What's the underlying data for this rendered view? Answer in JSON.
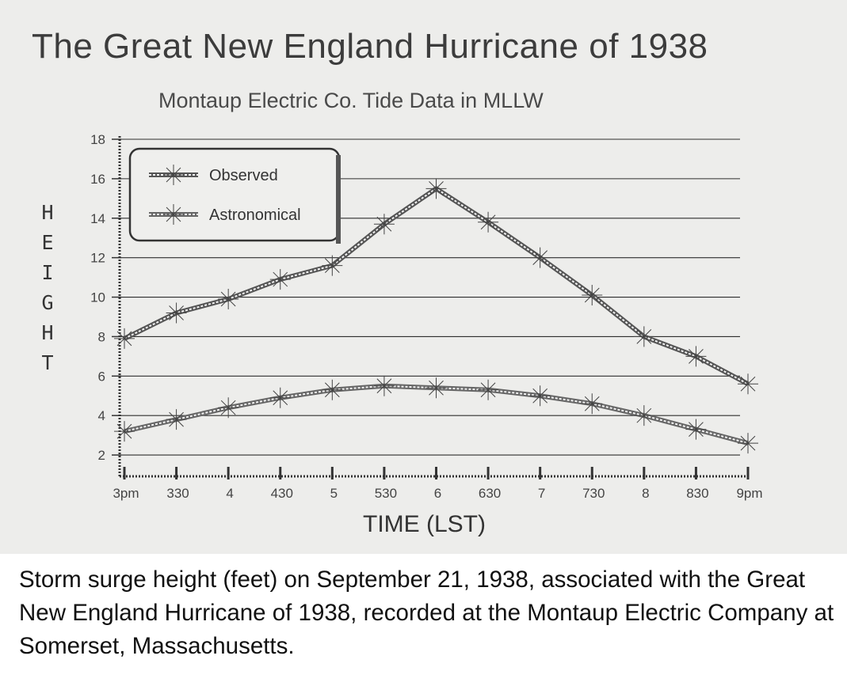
{
  "chart_data": {
    "type": "line",
    "title": "The Great New England Hurricane of 1938",
    "subtitle": "Montaup Electric Co. Tide Data in MLLW",
    "xlabel": "TIME (LST)",
    "ylabel": "HEIGHT",
    "categories": [
      "3pm",
      "330",
      "4",
      "430",
      "5",
      "530",
      "6",
      "630",
      "7",
      "730",
      "8",
      "830",
      "9pm"
    ],
    "ylim": [
      1,
      18
    ],
    "yticks": [
      2,
      4,
      6,
      8,
      10,
      12,
      14,
      16,
      18
    ],
    "grid": true,
    "legend_position": "top-left",
    "series": [
      {
        "name": "Observed",
        "values": [
          7.9,
          9.2,
          9.9,
          10.9,
          11.6,
          13.7,
          15.5,
          13.8,
          12.0,
          10.1,
          8.0,
          7.0,
          5.6
        ],
        "color": "#555555"
      },
      {
        "name": "Astronomical",
        "values": [
          3.2,
          3.8,
          4.4,
          4.9,
          5.3,
          5.5,
          5.4,
          5.3,
          5.0,
          4.6,
          4.0,
          3.3,
          2.6
        ],
        "color": "#666666"
      }
    ]
  },
  "caption": "Storm surge height (feet) on September 21, 1938, associated with the Great New England Hurricane of 1938, recorded at the Montaup Electric Company at Somerset, Massachusetts."
}
